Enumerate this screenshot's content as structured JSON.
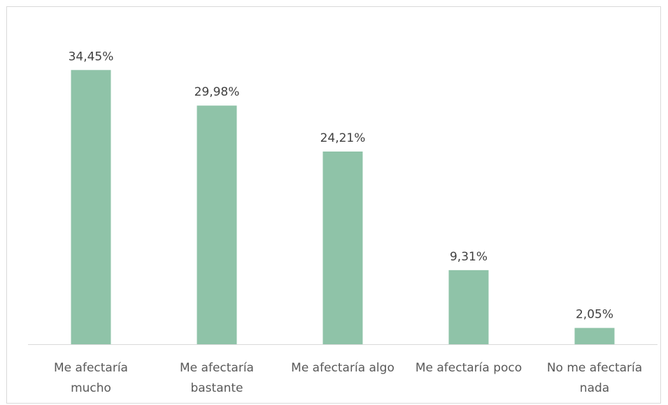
{
  "chart_data": {
    "type": "bar",
    "title": "",
    "xlabel": "",
    "ylabel": "",
    "categories": [
      [
        "Me afectaría",
        "mucho"
      ],
      [
        "Me afectaría",
        "bastante"
      ],
      [
        "Me afectaría algo"
      ],
      [
        "Me afectaría poco"
      ],
      [
        "No me afectaría",
        "nada"
      ]
    ],
    "values": [
      34.45,
      29.98,
      24.21,
      9.31,
      2.05
    ],
    "data_labels": [
      "34,45%",
      "29,98%",
      "24,21%",
      "9,31%",
      "2,05%"
    ],
    "ylim": [
      0,
      40
    ],
    "grid": false,
    "legend": "none",
    "colors": {
      "bar": "#8fc3a8",
      "axis": "#d9d9d9",
      "frame": "#d9d9d9"
    }
  }
}
